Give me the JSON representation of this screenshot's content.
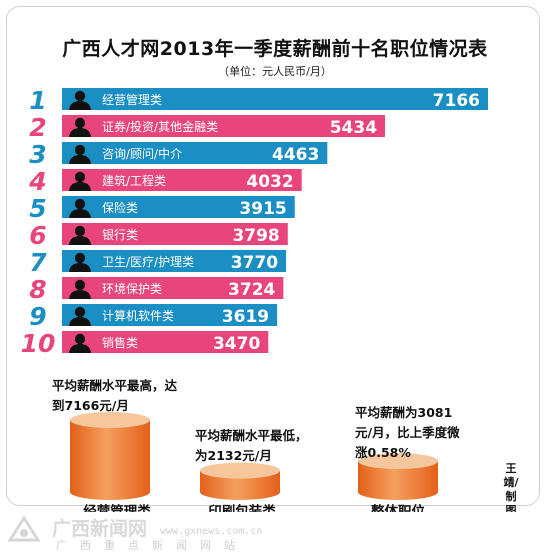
{
  "title": "广西人才网2013年一季度薪酬前十名职位情况表",
  "subtitle": "（单位：元人民币/月）",
  "colors": {
    "blue": "#1b8fc4",
    "pink": "#e8457c",
    "cylinder": "#ee7a2e",
    "cylinder_top": "#f6c79c"
  },
  "chart_data": {
    "type": "bar",
    "orientation": "horizontal",
    "title": "广西人才网2013年一季度薪酬前十名职位情况表",
    "unit": "（单位：元人民币/月）",
    "ranks": [
      "1",
      "2",
      "3",
      "4",
      "5",
      "6",
      "7",
      "8",
      "9",
      "10"
    ],
    "categories": [
      "经营管理类",
      "证券/投资/其他金融类",
      "咨询/顾问/中介",
      "建筑/工程类",
      "保险类",
      "银行类",
      "卫生/医疗/护理类",
      "环境保护类",
      "计算机软件类",
      "销售类"
    ],
    "values": [
      7166,
      5434,
      4463,
      4032,
      3915,
      3798,
      3770,
      3724,
      3619,
      3470
    ],
    "color_pattern": [
      "blue",
      "pink",
      "blue",
      "pink",
      "blue",
      "pink",
      "blue",
      "pink",
      "blue",
      "pink"
    ]
  },
  "summary": {
    "notes": [
      "平均薪酬水平最高，达到7166元/月",
      "平均薪酬水平最低，为2132元/月",
      "平均薪酬为3081元/月，比上季度微涨0.58%"
    ],
    "cylinders": [
      {
        "label": "经营管理类",
        "value": 7166
      },
      {
        "label": "印刷包装类",
        "value": 2132
      },
      {
        "label": "整体职位",
        "value": 3081
      }
    ]
  },
  "credit": "王靖/制图",
  "footer": {
    "logo_text": "广西新闻网",
    "url": "www.gxnews.com.cn",
    "subtitle": "广西重点新闻网站"
  }
}
